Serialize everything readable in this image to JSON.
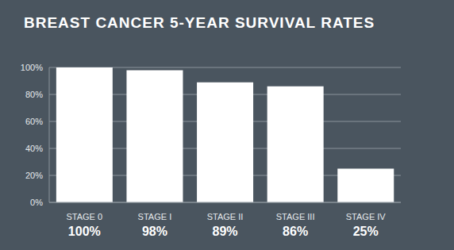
{
  "chart_data": {
    "type": "bar",
    "title": "BREAST CANCER 5-YEAR SURVIVAL RATES",
    "categories": [
      "STAGE 0",
      "STAGE I",
      "STAGE II",
      "STAGE III",
      "STAGE IV"
    ],
    "values": [
      100,
      98,
      89,
      86,
      25
    ],
    "value_labels": [
      "100%",
      "98%",
      "89%",
      "86%",
      "25%"
    ],
    "data_labels": true,
    "color": "#ffffff",
    "ylim": [
      0,
      100
    ],
    "yticks": [
      {
        "value": 0,
        "label": "0%"
      },
      {
        "value": 20,
        "label": "20%"
      },
      {
        "value": 40,
        "label": "40%"
      },
      {
        "value": 60,
        "label": "60%"
      },
      {
        "value": 80,
        "label": "80%"
      },
      {
        "value": 100,
        "label": "100%"
      }
    ],
    "grid": true
  }
}
